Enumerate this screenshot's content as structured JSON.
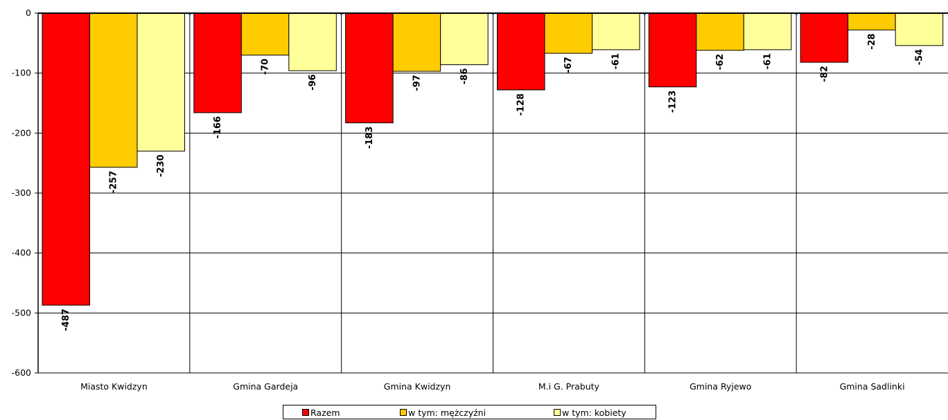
{
  "chart_data": {
    "type": "bar",
    "categories": [
      "Miasto Kwidzyn",
      "Gmina Gardeja",
      "Gmina Kwidzyn",
      "M.i G. Prabuty",
      "Gmina Ryjewo",
      "Gmina Sadlinki"
    ],
    "series": [
      {
        "name": "Razem",
        "color": "#ff0000",
        "values": [
          -487,
          -166,
          -183,
          -128,
          -123,
          -82
        ]
      },
      {
        "name": "w tym: mężczyźni",
        "color": "#ffcc00",
        "values": [
          -257,
          -70,
          -97,
          -67,
          -62,
          -28
        ]
      },
      {
        "name": "w tym: kobiety",
        "color": "#ffff99",
        "values": [
          -230,
          -96,
          -86,
          -61,
          -61,
          -54
        ]
      }
    ],
    "ylim": [
      -600,
      0
    ],
    "yticks": [
      0,
      -100,
      -200,
      -300,
      -400,
      -500,
      -600
    ],
    "grid": true,
    "legend_position": "bottom",
    "data_labels": true
  },
  "legend": {
    "items": [
      {
        "label": "Razem",
        "color": "#ff0000"
      },
      {
        "label": "w tym: mężczyźni",
        "color": "#ffcc00"
      },
      {
        "label": "w tym: kobiety",
        "color": "#ffff99"
      }
    ]
  }
}
